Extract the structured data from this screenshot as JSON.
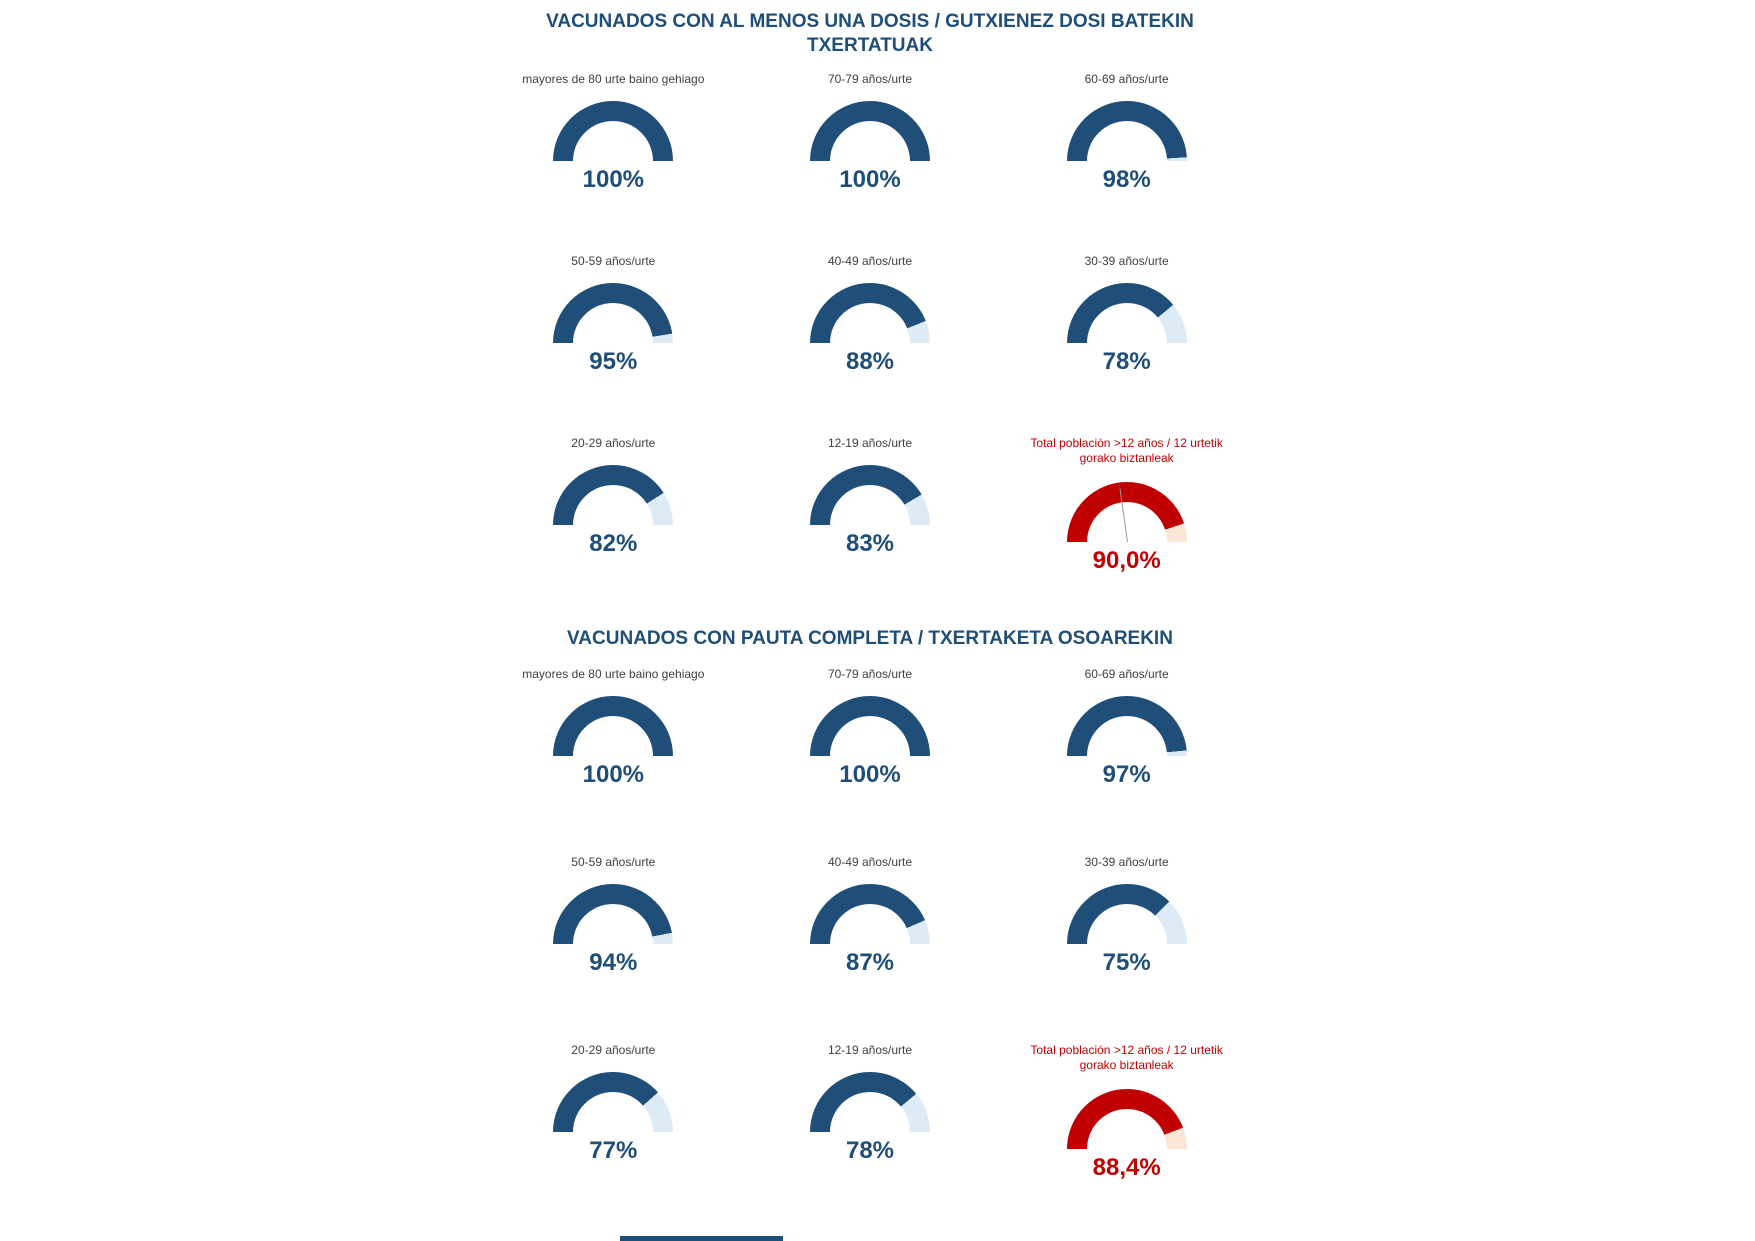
{
  "colors": {
    "navy": "#1F4E79",
    "light_blue_track": "#DDEBF7",
    "red": "#C00000",
    "light_pink_track": "#FBE5D6",
    "label_gray": "#404040",
    "needle_gray": "#999999"
  },
  "sections": [
    {
      "title": "VACUNADOS CON AL MENOS UNA DOSIS  / GUTXIENEZ DOSI BATEKIN TXERTATUAK",
      "gauges": [
        {
          "label": "mayores de 80 urte baino gehiago",
          "value": 100,
          "value_label": "100%"
        },
        {
          "label": "70-79 años/urte",
          "value": 100,
          "value_label": "100%"
        },
        {
          "label": "60-69 años/urte",
          "value": 98,
          "value_label": "98%"
        },
        {
          "label": "50-59 años/urte",
          "value": 95,
          "value_label": "95%"
        },
        {
          "label": "40-49 años/urte",
          "value": 88,
          "value_label": "88%"
        },
        {
          "label": "30-39 años/urte",
          "value": 78,
          "value_label": "78%"
        },
        {
          "label": "20-29 años/urte",
          "value": 82,
          "value_label": "82%"
        },
        {
          "label": "12-19 años/urte",
          "value": 83,
          "value_label": "83%"
        },
        {
          "label": "Total población >12 años / 12 urtetik gorako biztanleak",
          "value": 90.0,
          "value_label": "90,0%",
          "total": true,
          "needle": true
        }
      ]
    },
    {
      "title": "VACUNADOS CON PAUTA COMPLETA  / TXERTAKETA OSOAREKIN",
      "gauges": [
        {
          "label": "mayores de 80 urte baino gehiago",
          "value": 100,
          "value_label": "100%"
        },
        {
          "label": "70-79 años/urte",
          "value": 100,
          "value_label": "100%"
        },
        {
          "label": "60-69 años/urte",
          "value": 97,
          "value_label": "97%"
        },
        {
          "label": "50-59 años/urte",
          "value": 94,
          "value_label": "94%"
        },
        {
          "label": "40-49 años/urte",
          "value": 87,
          "value_label": "87%"
        },
        {
          "label": "30-39 años/urte",
          "value": 75,
          "value_label": "75%"
        },
        {
          "label": "20-29 años/urte",
          "value": 77,
          "value_label": "77%"
        },
        {
          "label": "12-19 años/urte",
          "value": 78,
          "value_label": "78%"
        },
        {
          "label": "Total población >12 años / 12 urtetik gorako biztanleak",
          "value": 88.4,
          "value_label": "88,4%",
          "total": true
        }
      ]
    }
  ],
  "chart_data": [
    {
      "type": "gauge",
      "title": "VACUNADOS CON AL MENOS UNA DOSIS  / GUTXIENEZ DOSI BATEKIN TXERTATUAK",
      "unit": "%",
      "range": [
        0,
        100
      ],
      "layout": "3x3 semicircular donut gauges, fill clockwise from left, remainder in light track color",
      "categories": [
        "mayores de 80 urte baino gehiago",
        "70-79 años/urte",
        "60-69 años/urte",
        "50-59 años/urte",
        "40-49 años/urte",
        "30-39 años/urte",
        "20-29 años/urte",
        "12-19 años/urte",
        "Total población >12 años / 12 urtetik gorako biztanleak"
      ],
      "values": [
        100,
        100,
        98,
        95,
        88,
        78,
        82,
        83,
        90.0
      ],
      "series_colors": [
        "#1F4E79",
        "#1F4E79",
        "#1F4E79",
        "#1F4E79",
        "#1F4E79",
        "#1F4E79",
        "#1F4E79",
        "#1F4E79",
        "#C00000"
      ]
    },
    {
      "type": "gauge",
      "title": "VACUNADOS CON PAUTA COMPLETA  / TXERTAKETA OSOAREKIN",
      "unit": "%",
      "range": [
        0,
        100
      ],
      "layout": "3x3 semicircular donut gauges, fill clockwise from left, remainder in light track color",
      "categories": [
        "mayores de 80 urte baino gehiago",
        "70-79 años/urte",
        "60-69 años/urte",
        "50-59 años/urte",
        "40-49 años/urte",
        "30-39 años/urte",
        "20-29 años/urte",
        "12-19 años/urte",
        "Total población >12 años / 12 urtetik gorako biztanleak"
      ],
      "values": [
        100,
        100,
        97,
        94,
        87,
        75,
        77,
        78,
        88.4
      ],
      "series_colors": [
        "#1F4E79",
        "#1F4E79",
        "#1F4E79",
        "#1F4E79",
        "#1F4E79",
        "#1F4E79",
        "#1F4E79",
        "#1F4E79",
        "#C00000"
      ]
    }
  ]
}
